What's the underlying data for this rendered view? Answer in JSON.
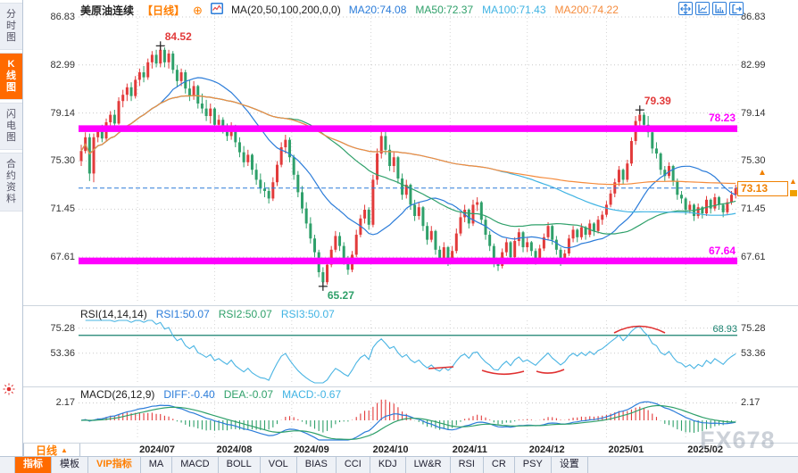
{
  "header": {
    "symbol": "美原油连续",
    "period_tag": "【日线】",
    "ma_params": "MA(20,50,100,200,0,0)",
    "ma_values": [
      {
        "label": "MA20:74.08",
        "color": "#2b7cd9"
      },
      {
        "label": "MA50:72.37",
        "color": "#2fa06a"
      },
      {
        "label": "MA100:71.43",
        "color": "#3fb3e3"
      },
      {
        "label": "MA200:74.22",
        "color": "#f58b3c"
      }
    ],
    "tools": [
      "pan-crosshair",
      "expand-x-axis",
      "compress-x-axis",
      "exit-right"
    ]
  },
  "sidebar": {
    "tabs": [
      {
        "label": "分时图",
        "active": false
      },
      {
        "label": "K线图",
        "active": true
      },
      {
        "label": "闪电图",
        "active": false
      },
      {
        "label": "合约资料",
        "active": false
      }
    ],
    "alert_icon": "red-sun-burst"
  },
  "main_chart": {
    "y_ticks": [
      "86.83",
      "82.99",
      "79.14",
      "75.30",
      "71.45",
      "67.61"
    ],
    "bands": [
      {
        "label": "78.23",
        "price": 78.23,
        "color": "#ff00ff"
      },
      {
        "label": "67.64",
        "price": 67.64,
        "color": "#ff00ff"
      }
    ],
    "current_price": {
      "label": "73.13",
      "value": 73.13
    },
    "annotations": [
      {
        "label": "84.52",
        "price": 84.52,
        "candle_index": 19,
        "color": "#e23b3b"
      },
      {
        "label": "79.39",
        "price": 79.39,
        "candle_index": 134,
        "color": "#e23b3b"
      },
      {
        "label": "65.27",
        "price": 65.27,
        "candle_index": 58,
        "color": "#2fa06a"
      }
    ]
  },
  "rsi_panel": {
    "title": "RSI(14,14,14)",
    "readings": [
      {
        "label": "RSI1:50.07",
        "color": "#2b7cd9"
      },
      {
        "label": "RSI2:50.07",
        "color": "#2fa06a"
      },
      {
        "label": "RSI3:50.07",
        "color": "#3fb3e3"
      }
    ],
    "level_label": "68.93",
    "level_value": 68.93,
    "y_ticks": [
      "75.28",
      "53.36"
    ]
  },
  "macd_panel": {
    "title": "MACD(26,12,9)",
    "readings": [
      {
        "label": "DIFF:-0.40",
        "color": "#2b7cd9"
      },
      {
        "label": "DEA:-0.07",
        "color": "#2fa06a"
      },
      {
        "label": "MACD:-0.67",
        "color": "#3fb3e3"
      }
    ],
    "y_ticks": [
      "2.17"
    ]
  },
  "x_axis": {
    "period_label": "日线",
    "months": [
      "2024/07",
      "2024/08",
      "2024/09",
      "2024/10",
      "2024/11",
      "2024/12",
      "2025/01",
      "2025/02"
    ]
  },
  "toolbar": {
    "tabs": [
      {
        "label": "指标",
        "active": true
      },
      {
        "label": "模板"
      },
      {
        "label": "VIP指标",
        "vip": true
      },
      {
        "label": "MA"
      },
      {
        "label": "MACD"
      },
      {
        "label": "BOLL"
      },
      {
        "label": "VOL"
      },
      {
        "label": "BIAS"
      },
      {
        "label": "CCI"
      },
      {
        "label": "KDJ"
      },
      {
        "label": "LW&R"
      },
      {
        "label": "RSI"
      },
      {
        "label": "CR"
      },
      {
        "label": "PSY"
      },
      {
        "label": "设置"
      }
    ]
  },
  "watermark": "FX678",
  "chart_data": {
    "type": "candlestick",
    "symbol": "美原油连续",
    "period": "日线",
    "ylim": [
      65.0,
      87.5
    ],
    "y_ticks": [
      86.83,
      82.99,
      79.14,
      75.3,
      71.45,
      67.61
    ],
    "overlays": {
      "ma_periods": [
        20,
        50,
        100,
        200
      ],
      "resistance_band": 78.23,
      "support_band": 67.64,
      "last_price": 73.13,
      "marked_high": 84.52,
      "marked_swing_high": 79.39,
      "marked_low": 65.27
    },
    "sub_indicators": [
      "RSI(14,14,14)",
      "MACD(26,12,9)"
    ],
    "candles": [
      [
        75.3,
        76.6,
        74.9,
        76.1
      ],
      [
        76.1,
        77.6,
        75.9,
        77.2
      ],
      [
        77.2,
        77.5,
        73.7,
        74.3
      ],
      [
        74.3,
        77.5,
        73.6,
        77.2
      ],
      [
        77.2,
        78.1,
        76.8,
        77.8
      ],
      [
        77.8,
        78.2,
        76.8,
        77.1
      ],
      [
        77.1,
        78.7,
        76.9,
        78.4
      ],
      [
        78.4,
        79.3,
        78.0,
        79.0
      ],
      [
        79.0,
        79.4,
        78.0,
        78.3
      ],
      [
        78.3,
        80.4,
        78.2,
        80.1
      ],
      [
        80.1,
        81.0,
        79.6,
        80.6
      ],
      [
        80.6,
        81.5,
        80.1,
        81.2
      ],
      [
        81.2,
        81.6,
        80.1,
        80.5
      ],
      [
        80.5,
        82.1,
        80.3,
        81.8
      ],
      [
        81.8,
        82.7,
        81.3,
        82.4
      ],
      [
        82.4,
        82.9,
        81.6,
        82.0
      ],
      [
        82.0,
        83.5,
        81.8,
        83.2
      ],
      [
        83.2,
        84.1,
        82.7,
        83.8
      ],
      [
        83.8,
        84.2,
        82.8,
        83.1
      ],
      [
        83.1,
        84.52,
        82.8,
        84.2
      ],
      [
        84.2,
        84.4,
        82.8,
        83.2
      ],
      [
        83.2,
        84.2,
        82.7,
        83.9
      ],
      [
        83.9,
        84.1,
        82.3,
        82.6
      ],
      [
        82.6,
        83.0,
        81.2,
        81.7
      ],
      [
        81.7,
        82.7,
        81.3,
        82.4
      ],
      [
        82.4,
        82.6,
        80.7,
        81.1
      ],
      [
        81.1,
        81.8,
        80.1,
        80.5
      ],
      [
        80.5,
        81.7,
        80.2,
        81.3
      ],
      [
        81.3,
        81.4,
        79.5,
        79.9
      ],
      [
        79.9,
        80.7,
        79.1,
        79.5
      ],
      [
        79.5,
        80.2,
        78.5,
        78.9
      ],
      [
        78.9,
        79.9,
        78.3,
        79.5
      ],
      [
        79.5,
        79.6,
        77.8,
        78.2
      ],
      [
        78.2,
        79.0,
        77.7,
        78.6
      ],
      [
        78.6,
        78.8,
        77.5,
        77.9
      ],
      [
        77.9,
        78.3,
        76.9,
        77.3
      ],
      [
        77.3,
        78.4,
        77.0,
        78.1
      ],
      [
        78.1,
        78.2,
        76.4,
        76.8
      ],
      [
        76.8,
        77.2,
        75.6,
        76.0
      ],
      [
        76.0,
        76.5,
        74.8,
        75.2
      ],
      [
        75.2,
        76.2,
        74.9,
        75.8
      ],
      [
        75.8,
        75.9,
        74.2,
        74.6
      ],
      [
        74.6,
        75.1,
        73.4,
        73.8
      ],
      [
        73.8,
        74.3,
        72.7,
        73.1
      ],
      [
        73.1,
        73.6,
        72.4,
        72.9
      ],
      [
        72.9,
        73.2,
        71.9,
        72.3
      ],
      [
        72.3,
        74.0,
        72.1,
        73.6
      ],
      [
        73.6,
        75.3,
        73.3,
        75.0
      ],
      [
        75.0,
        76.8,
        74.8,
        76.4
      ],
      [
        76.4,
        77.4,
        75.9,
        77.0
      ],
      [
        77.0,
        77.2,
        75.2,
        75.6
      ],
      [
        75.6,
        75.8,
        73.8,
        74.2
      ],
      [
        74.2,
        74.5,
        72.4,
        72.8
      ],
      [
        72.8,
        73.3,
        71.1,
        71.5
      ],
      [
        71.5,
        72.0,
        69.9,
        70.3
      ],
      [
        70.3,
        70.8,
        68.7,
        69.1
      ],
      [
        69.1,
        69.4,
        67.6,
        68.0
      ],
      [
        68.0,
        68.2,
        66.0,
        66.4
      ],
      [
        66.4,
        66.8,
        65.27,
        65.6
      ],
      [
        65.6,
        67.4,
        65.4,
        67.0
      ],
      [
        67.0,
        68.5,
        66.8,
        68.2
      ],
      [
        68.2,
        69.7,
        68.0,
        69.3
      ],
      [
        69.3,
        69.6,
        68.1,
        68.5
      ],
      [
        68.5,
        68.8,
        67.0,
        67.4
      ],
      [
        67.4,
        67.7,
        66.2,
        66.6
      ],
      [
        66.6,
        68.1,
        66.4,
        67.8
      ],
      [
        67.8,
        69.8,
        67.6,
        69.4
      ],
      [
        69.4,
        71.0,
        69.2,
        70.7
      ],
      [
        70.7,
        71.8,
        70.3,
        71.4
      ],
      [
        71.4,
        71.6,
        69.8,
        70.2
      ],
      [
        70.2,
        74.2,
        70.0,
        73.8
      ],
      [
        73.8,
        76.3,
        73.4,
        75.9
      ],
      [
        75.9,
        78.0,
        75.5,
        77.3
      ],
      [
        77.3,
        77.7,
        75.8,
        76.2
      ],
      [
        76.2,
        76.6,
        74.5,
        74.9
      ],
      [
        74.9,
        76.0,
        74.4,
        75.6
      ],
      [
        75.6,
        75.7,
        73.5,
        73.9
      ],
      [
        73.9,
        74.3,
        72.2,
        72.6
      ],
      [
        72.6,
        73.8,
        72.3,
        73.4
      ],
      [
        73.4,
        73.5,
        71.4,
        71.8
      ],
      [
        71.8,
        72.2,
        70.5,
        70.9
      ],
      [
        70.9,
        72.0,
        70.6,
        71.6
      ],
      [
        71.6,
        71.7,
        69.7,
        70.1
      ],
      [
        70.1,
        70.4,
        68.6,
        69.0
      ],
      [
        69.0,
        70.1,
        68.8,
        69.7
      ],
      [
        69.7,
        69.8,
        67.8,
        68.2
      ],
      [
        68.2,
        68.5,
        67.1,
        67.5
      ],
      [
        67.5,
        68.8,
        67.3,
        68.4
      ],
      [
        68.4,
        68.5,
        66.9,
        67.3
      ],
      [
        67.3,
        68.5,
        67.1,
        68.1
      ],
      [
        68.1,
        69.9,
        67.9,
        69.5
      ],
      [
        69.5,
        71.2,
        69.3,
        70.8
      ],
      [
        70.8,
        71.8,
        70.4,
        71.4
      ],
      [
        71.4,
        71.5,
        69.9,
        70.3
      ],
      [
        70.3,
        72.2,
        70.1,
        71.8
      ],
      [
        71.8,
        72.4,
        71.3,
        72.0
      ],
      [
        72.0,
        72.1,
        70.2,
        70.6
      ],
      [
        70.6,
        70.9,
        69.0,
        69.4
      ],
      [
        69.4,
        69.7,
        68.1,
        68.5
      ],
      [
        68.5,
        68.7,
        66.8,
        67.1
      ],
      [
        67.1,
        67.5,
        66.5,
        66.9
      ],
      [
        66.9,
        68.3,
        66.7,
        68.0
      ],
      [
        68.0,
        69.1,
        67.7,
        68.8
      ],
      [
        68.8,
        68.9,
        67.2,
        67.6
      ],
      [
        67.6,
        69.2,
        67.4,
        68.9
      ],
      [
        68.9,
        69.9,
        68.5,
        69.6
      ],
      [
        69.6,
        69.7,
        68.0,
        68.4
      ],
      [
        68.4,
        69.2,
        68.0,
        68.8
      ],
      [
        68.8,
        68.9,
        67.7,
        68.1
      ],
      [
        68.1,
        68.3,
        67.0,
        67.4
      ],
      [
        67.4,
        68.6,
        67.2,
        68.3
      ],
      [
        68.3,
        69.5,
        68.1,
        69.2
      ],
      [
        69.2,
        70.4,
        69.0,
        70.1
      ],
      [
        70.1,
        70.2,
        68.6,
        69.0
      ],
      [
        69.0,
        69.3,
        67.8,
        68.2
      ],
      [
        68.2,
        68.4,
        66.9,
        67.3
      ],
      [
        67.3,
        68.2,
        67.1,
        67.9
      ],
      [
        67.9,
        69.4,
        67.7,
        69.1
      ],
      [
        69.1,
        70.1,
        68.8,
        69.8
      ],
      [
        69.8,
        69.9,
        68.8,
        69.2
      ],
      [
        69.2,
        70.3,
        69.0,
        70.0
      ],
      [
        70.0,
        70.1,
        69.0,
        69.4
      ],
      [
        69.4,
        70.6,
        69.2,
        70.3
      ],
      [
        70.3,
        70.4,
        69.3,
        69.7
      ],
      [
        69.7,
        70.9,
        69.5,
        70.6
      ],
      [
        70.6,
        71.3,
        70.2,
        71.0
      ],
      [
        71.0,
        72.1,
        70.8,
        71.8
      ],
      [
        71.8,
        73.0,
        71.6,
        72.7
      ],
      [
        72.7,
        73.9,
        72.4,
        73.6
      ],
      [
        73.6,
        74.9,
        73.3,
        74.6
      ],
      [
        74.6,
        74.7,
        73.4,
        73.8
      ],
      [
        73.8,
        75.4,
        73.6,
        75.1
      ],
      [
        75.1,
        77.2,
        74.9,
        76.9
      ],
      [
        76.9,
        78.9,
        76.6,
        78.5
      ],
      [
        78.5,
        79.39,
        77.8,
        79.0
      ],
      [
        79.0,
        79.2,
        77.8,
        78.2
      ],
      [
        78.2,
        78.9,
        77.2,
        77.6
      ],
      [
        77.6,
        77.8,
        75.9,
        76.3
      ],
      [
        76.3,
        76.8,
        75.5,
        75.9
      ],
      [
        75.9,
        76.0,
        74.2,
        74.6
      ],
      [
        74.6,
        74.9,
        73.7,
        74.1
      ],
      [
        74.1,
        75.2,
        73.9,
        74.9
      ],
      [
        74.9,
        75.0,
        73.3,
        73.7
      ],
      [
        73.7,
        73.9,
        72.2,
        72.6
      ],
      [
        72.6,
        72.9,
        71.9,
        72.3
      ],
      [
        72.3,
        72.4,
        71.0,
        71.4
      ],
      [
        71.4,
        72.1,
        71.1,
        71.8
      ],
      [
        71.8,
        71.9,
        70.5,
        70.9
      ],
      [
        70.9,
        71.9,
        70.7,
        71.6
      ],
      [
        71.6,
        71.7,
        70.7,
        71.1
      ],
      [
        71.1,
        72.5,
        70.9,
        72.2
      ],
      [
        72.2,
        72.3,
        71.1,
        71.5
      ],
      [
        71.5,
        72.7,
        71.3,
        72.4
      ],
      [
        72.4,
        72.5,
        71.4,
        71.8
      ],
      [
        71.8,
        71.9,
        70.8,
        71.2
      ],
      [
        71.2,
        72.3,
        71.0,
        72.0
      ],
      [
        72.0,
        72.9,
        71.8,
        72.6
      ],
      [
        72.6,
        73.4,
        72.3,
        73.13
      ]
    ]
  }
}
